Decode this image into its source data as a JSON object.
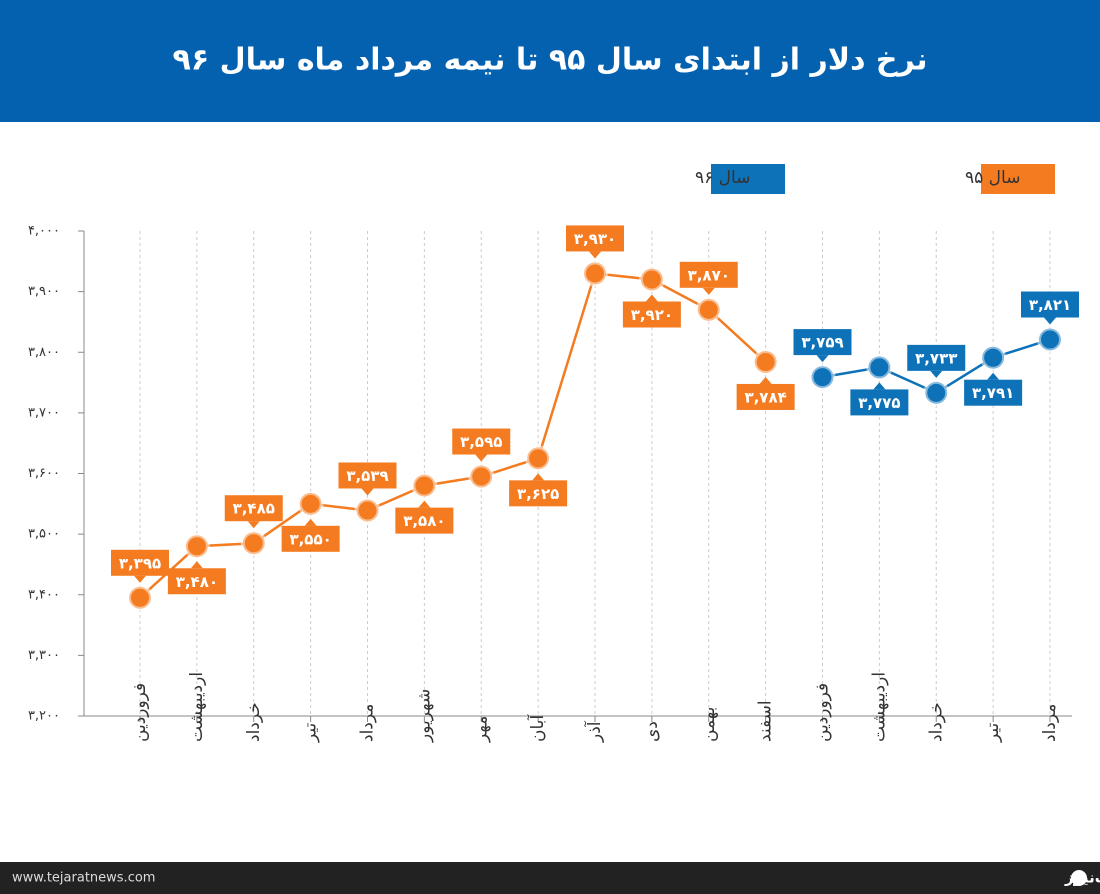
{
  "chart_data": {
    "type": "line",
    "title": "نرخ دلار از ابتدای سال ۹۵ تا نیمه مرداد ماه سال ۹۶",
    "categories": [
      "فروردین",
      "اردیبهشت",
      "خرداد",
      "تیر",
      "مرداد",
      "شهریور",
      "مهر",
      "آبان",
      "آذر",
      "دی",
      "بهمن",
      "اسفند",
      "فروردین",
      "اردیبهشت",
      "خرداد",
      "تیر",
      "مرداد"
    ],
    "series": [
      {
        "name": "سال ۹۵",
        "color": "#f47b20",
        "values": [
          3395,
          3480,
          3485,
          3550,
          3539,
          3580,
          3595,
          3625,
          3930,
          3920,
          3870,
          3784,
          null,
          null,
          null,
          null,
          null
        ],
        "value_labels": [
          "۳,۳۹۵",
          "۳,۴۸۰",
          "۳,۴۸۵",
          "۳,۵۵۰",
          "۳,۵۳۹",
          "۳,۵۸۰",
          "۳,۵۹۵",
          "۳,۶۲۵",
          "۳,۹۳۰",
          "۳,۹۲۰",
          "۳,۸۷۰",
          "۳,۷۸۴",
          null,
          null,
          null,
          null,
          null
        ]
      },
      {
        "name": "سال ۹۶",
        "color": "#0e72b8",
        "values": [
          null,
          null,
          null,
          null,
          null,
          null,
          null,
          null,
          null,
          null,
          null,
          null,
          3759,
          3775,
          3733,
          3791,
          3821
        ],
        "value_labels": [
          null,
          null,
          null,
          null,
          null,
          null,
          null,
          null,
          null,
          null,
          null,
          null,
          "۳,۷۵۹",
          "۳,۷۷۵",
          "۳,۷۳۳",
          "۳,۷۹۱",
          "۳,۸۲۱"
        ]
      }
    ],
    "ylim": [
      3200,
      4000
    ],
    "yticks": [
      {
        "value": 3200,
        "label": "۳,۲۰۰"
      },
      {
        "value": 3300,
        "label": "۳,۳۰۰"
      },
      {
        "value": 3400,
        "label": "۳,۴۰۰"
      },
      {
        "value": 3500,
        "label": "۳,۵۰۰"
      },
      {
        "value": 3600,
        "label": "۳,۶۰۰"
      },
      {
        "value": 3700,
        "label": "۳,۷۰۰"
      },
      {
        "value": 3800,
        "label": "۳,۸۰۰"
      },
      {
        "value": 3900,
        "label": "۳,۹۰۰"
      },
      {
        "value": 4000,
        "label": "۴,۰۰۰"
      }
    ],
    "grid": true,
    "footer_url": "www.tejaratnews.com",
    "footer_brand": "تجارت‌نیوز"
  }
}
